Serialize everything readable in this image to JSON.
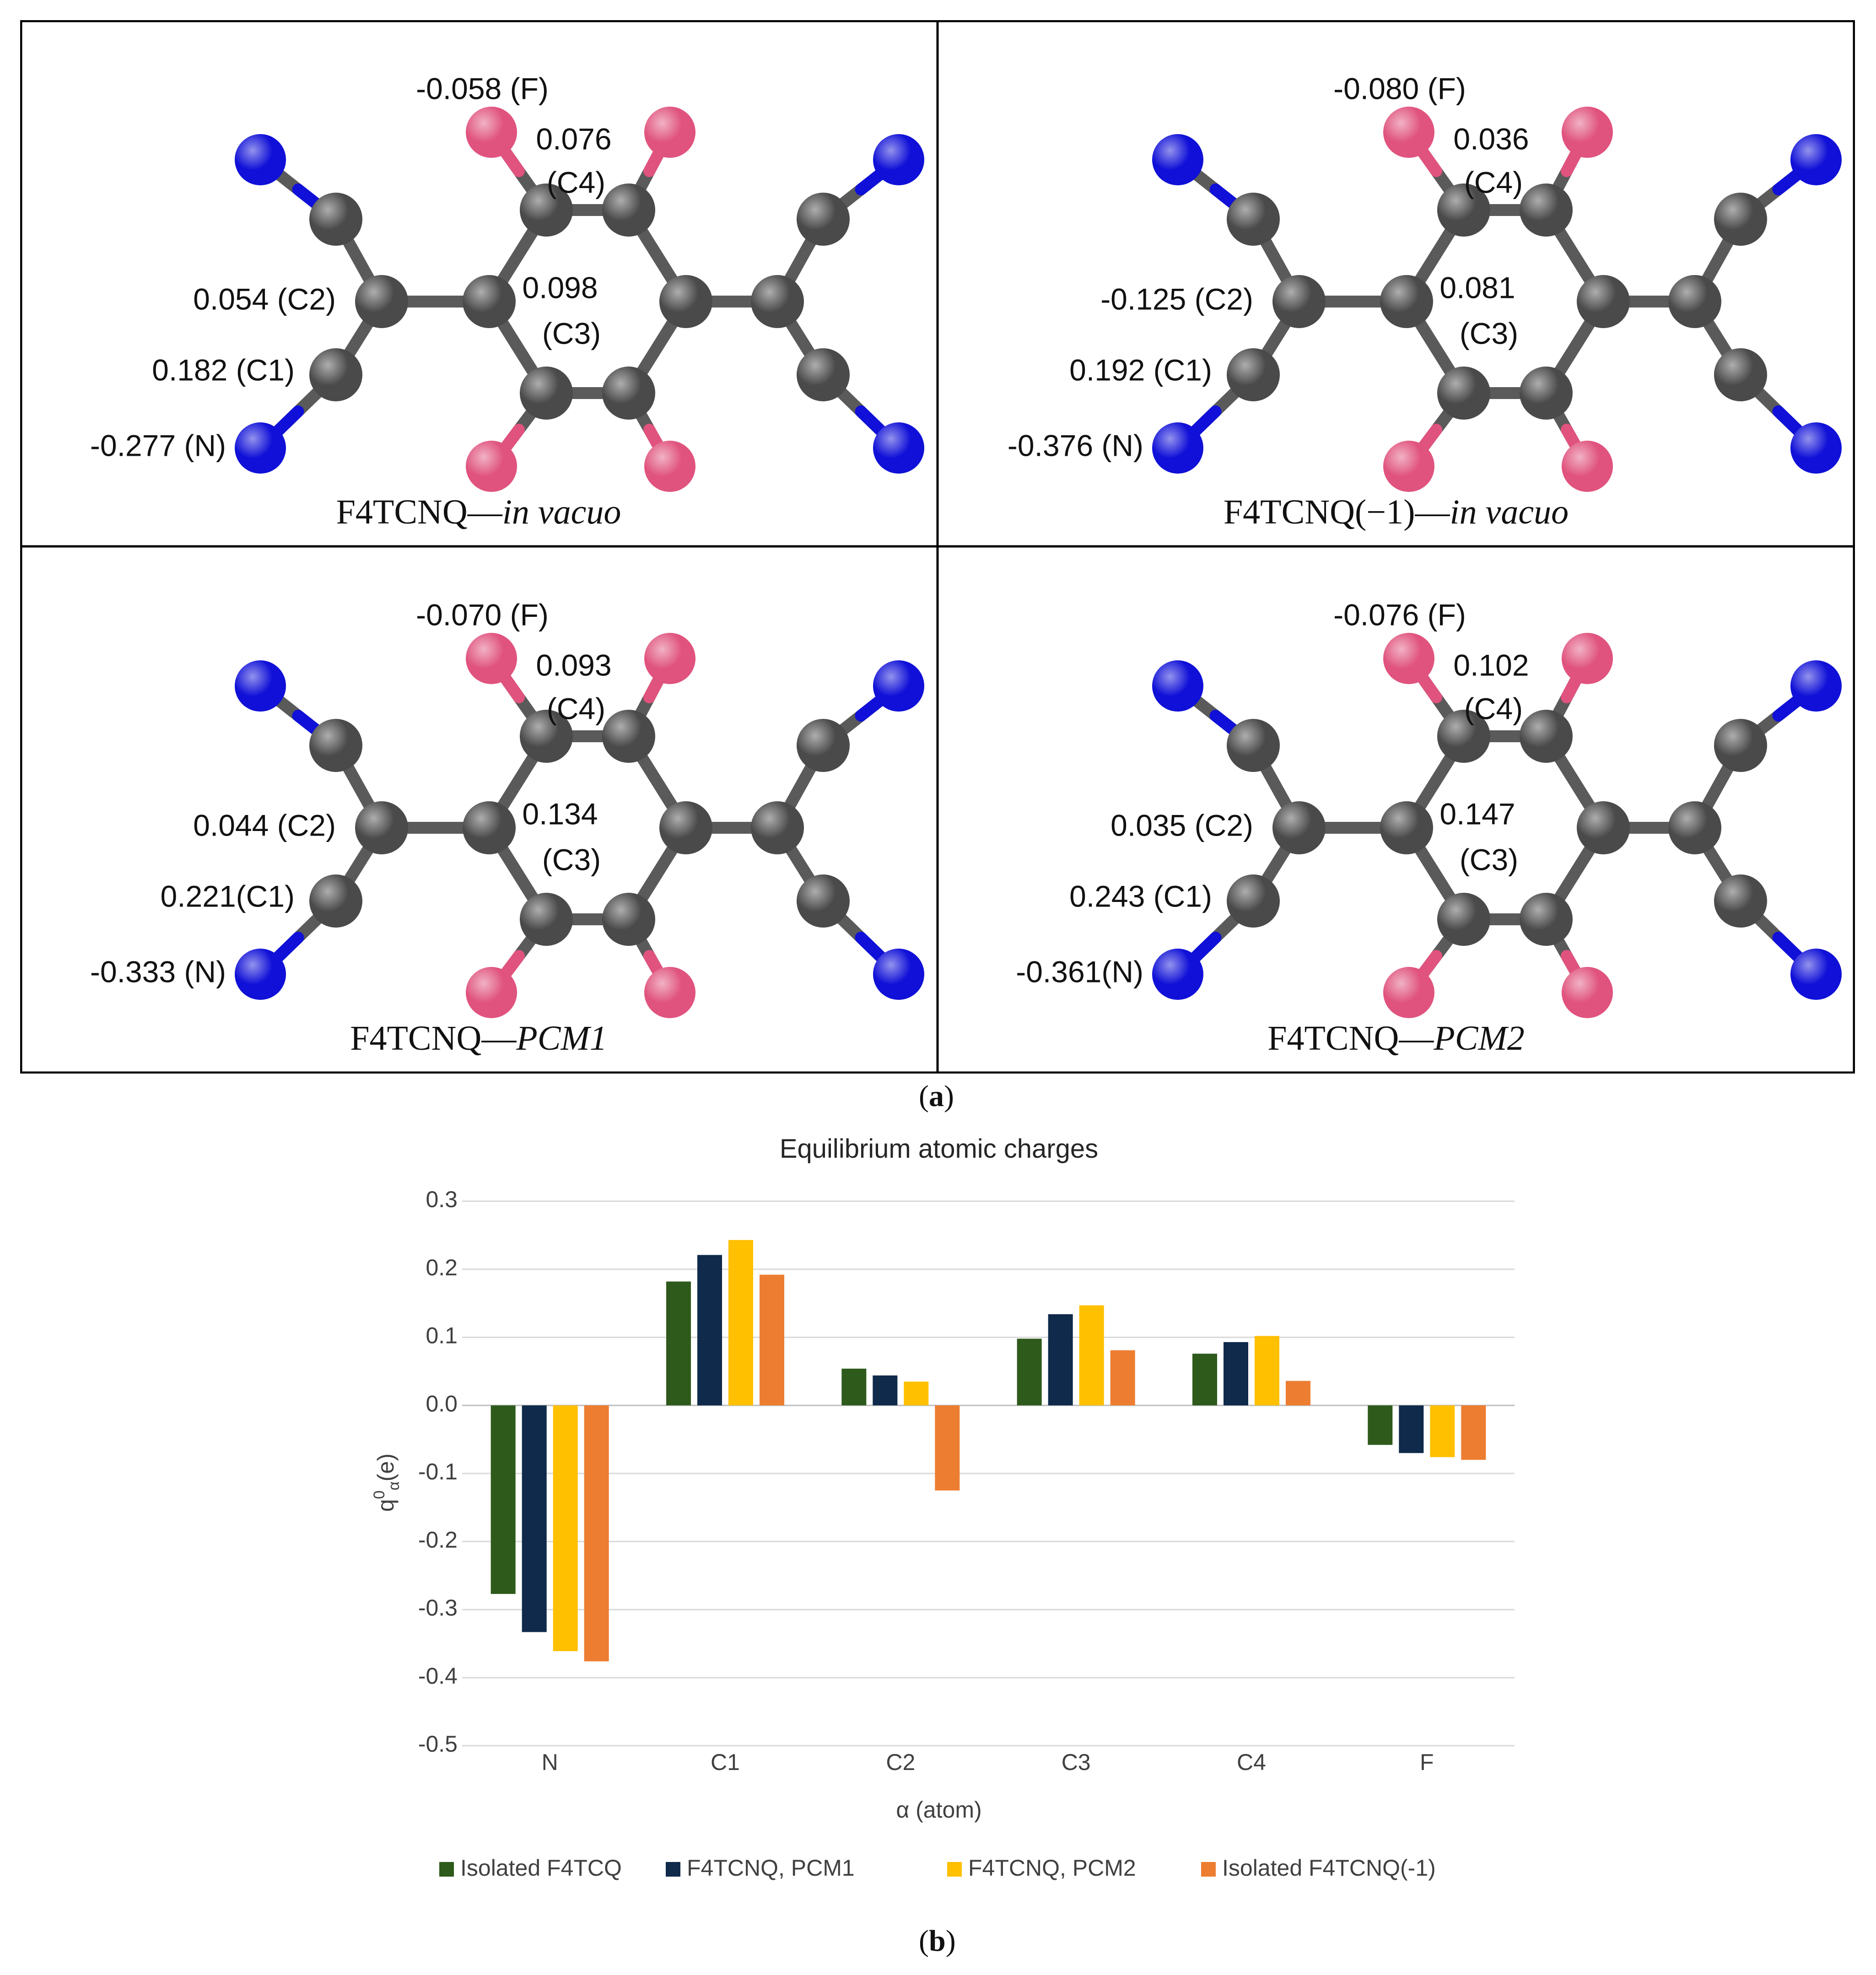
{
  "colors": {
    "N": "#1010d8",
    "C": "#4a4a4a",
    "F": "#e0537e",
    "series": [
      "#2e5a1c",
      "#0f2a4a",
      "#ffc000",
      "#ed7d31"
    ]
  },
  "panel_a": {
    "label_open": "(",
    "label_letter": "a",
    "label_close": ")",
    "structures": [
      {
        "title_main": "F4TCNQ—",
        "title_italic": "in vacuo",
        "labels": {
          "F": "-0.058 (F)",
          "C4_val": "0.076",
          "C4_tag": "(C4)",
          "C3_val": "0.098",
          "C3_tag": "(C3)",
          "C2": "0.054 (C2)",
          "C1": "0.182 (C1)",
          "N": "-0.277 (N)"
        }
      },
      {
        "title_main": "F4TCNQ(−1)—",
        "title_italic": "in vacuo",
        "labels": {
          "F": "-0.080 (F)",
          "C4_val": "0.036",
          "C4_tag": "(C4)",
          "C3_val": "0.081",
          "C3_tag": "(C3)",
          "C2": "-0.125 (C2)",
          "C1": "0.192 (C1)",
          "N": "-0.376 (N)"
        }
      },
      {
        "title_main": "F4TCNQ—",
        "title_italic": "PCM1",
        "labels": {
          "F": "-0.070 (F)",
          "C4_val": "0.093",
          "C4_tag": "(C4)",
          "C3_val": "0.134",
          "C3_tag": "(C3)",
          "C2": "0.044 (C2)",
          "C1": "0.221(C1)",
          "N": "-0.333 (N)"
        }
      },
      {
        "title_main": "F4TCNQ—",
        "title_italic": "PCM2",
        "labels": {
          "F": "-0.076 (F)",
          "C4_val": "0.102",
          "C4_tag": "(C4)",
          "C3_val": "0.147",
          "C3_tag": "(C3)",
          "C2": "0.035 (C2)",
          "C1": "0.243 (C1)",
          "N": "-0.361(N)"
        }
      }
    ]
  },
  "panel_b": {
    "label_open": "(",
    "label_letter": "b",
    "label_close": ")"
  },
  "chart_data": {
    "type": "bar",
    "title": "Equilibrium atomic charges",
    "xlabel": "α (atom)",
    "ylabel_base": "q",
    "ylabel_sup": "0",
    "ylabel_sub": "α",
    "ylabel_unit": "(e)",
    "categories": [
      "N",
      "C1",
      "C2",
      "C3",
      "C4",
      "F"
    ],
    "ylim": [
      -0.5,
      0.3
    ],
    "yticks": [
      "0.3",
      "0.2",
      "0.1",
      "0.0",
      "-0.1",
      "-0.2",
      "-0.3",
      "-0.4",
      "-0.5"
    ],
    "ytick_values": [
      0.3,
      0.2,
      0.1,
      0.0,
      -0.1,
      -0.2,
      -0.3,
      -0.4,
      -0.5
    ],
    "grid": true,
    "legend_position": "bottom",
    "series": [
      {
        "name": "Isolated F4TCQ",
        "values": [
          -0.277,
          0.182,
          0.054,
          0.098,
          0.076,
          -0.058
        ]
      },
      {
        "name": "F4TCNQ,  PCM1",
        "values": [
          -0.333,
          0.221,
          0.044,
          0.134,
          0.093,
          -0.07
        ]
      },
      {
        "name": "F4TCNQ,  PCM2",
        "values": [
          -0.361,
          0.243,
          0.035,
          0.147,
          0.102,
          -0.076
        ]
      },
      {
        "name": "Isolated F4TCNQ(-1)",
        "values": [
          -0.376,
          0.192,
          -0.125,
          0.081,
          0.036,
          -0.08
        ]
      }
    ]
  }
}
